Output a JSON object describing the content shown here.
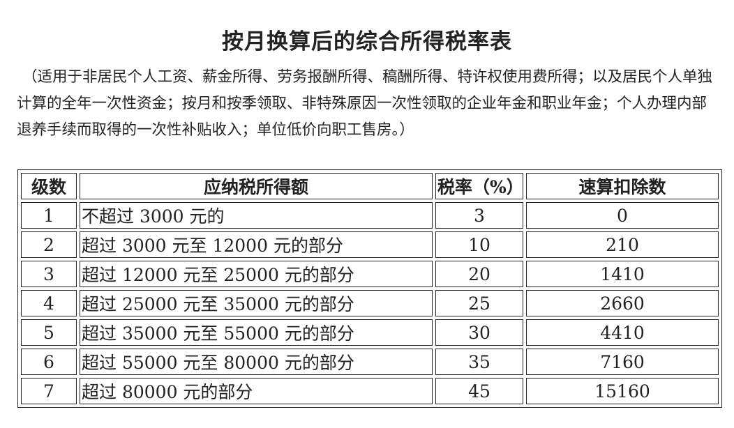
{
  "title": "按月换算后的综合所得税率表",
  "note": "（适用于非居民个人工资、薪金所得、劳务报酬所得、稿酬所得、特许权使用费所得；以及居民个人单独计算的全年一次性资金；按月和按季领取、非特殊原因一次性领取的企业年金和职业年金；个人办理内部退养手续而取得的一次性补贴收入；单位低价向职工售房。）",
  "table": {
    "headers": [
      "级数",
      "应纳税所得额",
      "税率（%）",
      "速算扣除数"
    ],
    "rows": [
      [
        "1",
        "不超过 3000 元的",
        "3",
        "0"
      ],
      [
        "2",
        "超过 3000 元至 12000 元的部分",
        "10",
        "210"
      ],
      [
        "3",
        "超过 12000 元至 25000 元的部分",
        "20",
        "1410"
      ],
      [
        "4",
        "超过 25000 元至 35000 元的部分",
        "25",
        "2660"
      ],
      [
        "5",
        "超过 35000 元至 55000 元的部分",
        "30",
        "4410"
      ],
      [
        "6",
        "超过 55000 元至 80000 元的部分",
        "35",
        "7160"
      ],
      [
        "7",
        "超过 80000 元的部分",
        "45",
        "15160"
      ]
    ]
  }
}
